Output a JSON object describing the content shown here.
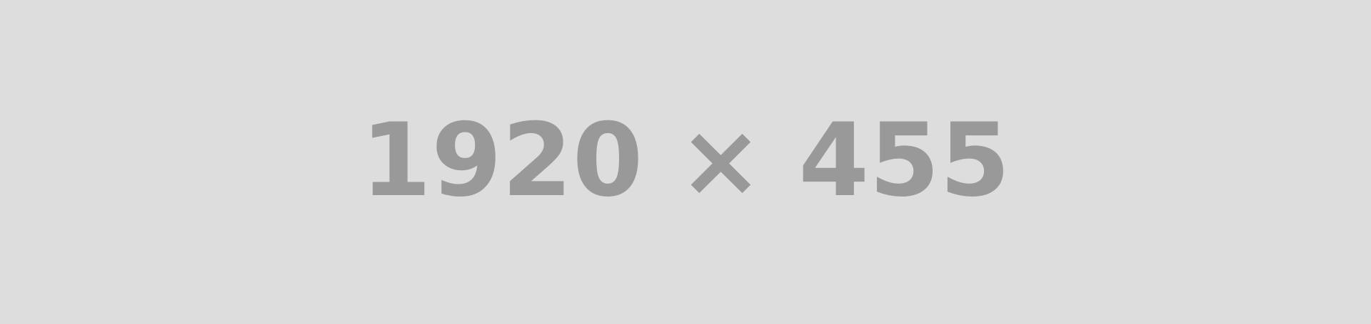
{
  "placeholder": {
    "label": "1920 × 455",
    "background_color": "#dddddd",
    "text_color": "#999999"
  }
}
